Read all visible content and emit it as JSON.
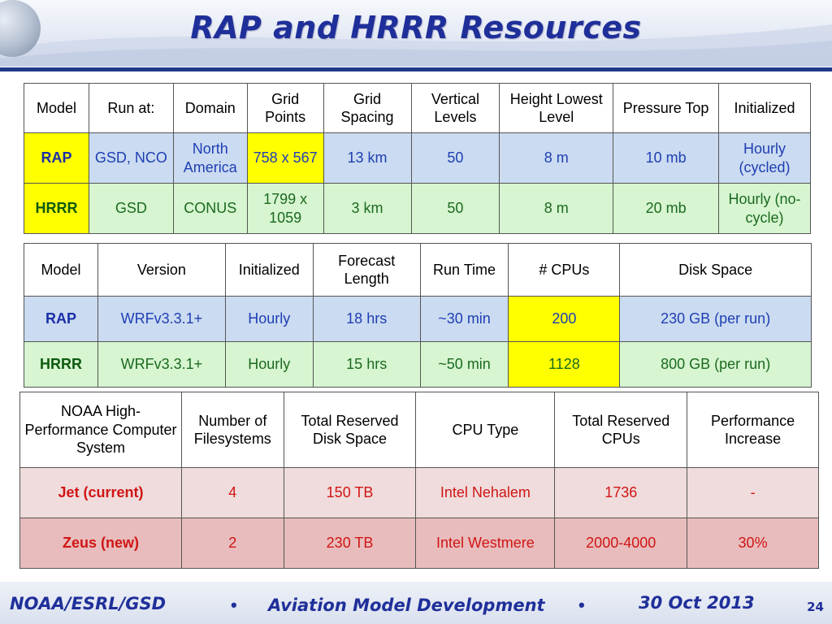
{
  "title": "RAP and HRRR Resources",
  "colors": {
    "title": "#1f2f9a",
    "rap_row": "#cbdbf1",
    "hrrr_row": "#d6f5d0",
    "highlight": "#ffff00",
    "jet_row": "#f0dcdc",
    "zeus_row": "#e8bcbc"
  },
  "table1": {
    "headers": [
      "Model",
      "Run at:",
      "Domain",
      "Grid Points",
      "Grid Spacing",
      "Vertical Levels",
      "Height Lowest Level",
      "Pressure Top",
      "Initialized"
    ],
    "rows": [
      [
        "RAP",
        "GSD, NCO",
        "North America",
        "758 x 567",
        "13 km",
        "50",
        "8 m",
        "10 mb",
        "Hourly (cycled)"
      ],
      [
        "HRRR",
        "GSD",
        "CONUS",
        "1799 x 1059",
        "3 km",
        "50",
        "8 m",
        "20 mb",
        "Hourly (no-cycle)"
      ]
    ]
  },
  "table2": {
    "headers": [
      "Model",
      "Version",
      "Initialized",
      "Forecast Length",
      "Run Time",
      "# CPUs",
      "Disk Space"
    ],
    "rows": [
      [
        "RAP",
        "WRFv3.3.1+",
        "Hourly",
        "18 hrs",
        "~30 min",
        "200",
        "230 GB (per run)"
      ],
      [
        "HRRR",
        "WRFv3.3.1+",
        "Hourly",
        "15 hrs",
        "~50 min",
        "1128",
        "800 GB (per run)"
      ]
    ]
  },
  "table3": {
    "headers": [
      "NOAA High-Performance Computer System",
      "Number of Filesystems",
      "Total Reserved Disk Space",
      "CPU Type",
      "Total Reserved CPUs",
      "Performance Increase"
    ],
    "rows": [
      [
        "Jet (current)",
        "4",
        "150 TB",
        "Intel Nehalem",
        "1736",
        "-"
      ],
      [
        "Zeus (new)",
        "2",
        "230 TB",
        "Intel Westmere",
        "2000-4000",
        "30%"
      ]
    ]
  },
  "footer": {
    "org": "NOAA/ESRL/GSD",
    "bullet": "•",
    "topic": "Aviation Model Development",
    "date": "30 Oct 2013",
    "page": "24"
  }
}
